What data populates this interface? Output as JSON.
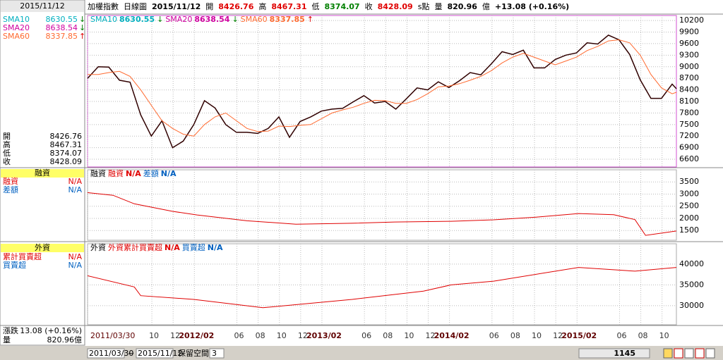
{
  "header": {
    "name": "加權指數",
    "period": "日線圖",
    "date": "2015/11/12",
    "items": [
      {
        "label": "開",
        "value": 8426.76,
        "color": "#e00000"
      },
      {
        "label": "高",
        "value": 8467.31,
        "color": "#e00000"
      },
      {
        "label": "低",
        "value": 8374.07,
        "color": "#008000"
      },
      {
        "label": "收",
        "value": 8428.09,
        "color": "#e00000"
      }
    ],
    "unit": "s點",
    "volume_label": "量",
    "volume": 820.96,
    "volume_unit": "億",
    "change": "+13.08 (+0.16%)"
  },
  "sidebar": {
    "date": "2015/11/12",
    "margin_title": "融資",
    "foreign_title": "外資",
    "foreign_rows": [
      {
        "name": "累計買賣超",
        "value": "N/A",
        "color": "#e00000"
      },
      {
        "name": "買賣超",
        "value": "N/A",
        "color": "#0060c0"
      }
    ],
    "change_label": "漲跌",
    "change": "13.08 (+0.16%)",
    "volume_label": "量",
    "volume": "820.96億"
  },
  "bottom": {
    "start": "2011/03/30",
    "separator": "~",
    "end": "2015/11/12",
    "reserve_label": "保留空間",
    "reserve": 3,
    "count": 1145
  },
  "chart_data": [
    {
      "type": "line",
      "xlim": [
        0,
        55.4
      ],
      "ylim": [
        6400,
        10330
      ],
      "yticks": [
        6600,
        6900,
        7200,
        7500,
        7800,
        8100,
        8400,
        8700,
        9000,
        9300,
        9600,
        9900,
        10200
      ],
      "legend": [
        {
          "name": "SMA10",
          "value": 8630.55,
          "arrow": "↓",
          "color": "#00b0c0",
          "arrow_color": "#008000"
        },
        {
          "name": "SMA20",
          "value": 8638.54,
          "arrow": "↓",
          "color": "#d000a0",
          "arrow_color": "#008000"
        },
        {
          "name": "SMA60",
          "value": 8337.85,
          "arrow": "↑",
          "color": "#ff6a30",
          "arrow_color": "#e00000"
        }
      ],
      "x": [
        0,
        1,
        2,
        3,
        4,
        5,
        6,
        7,
        8,
        9,
        10,
        11,
        12,
        13,
        14,
        15,
        16,
        17,
        18,
        19,
        20,
        21,
        22,
        23,
        24,
        25,
        26,
        27,
        28,
        29,
        30,
        31,
        32,
        33,
        34,
        35,
        36,
        37,
        38,
        39,
        40,
        41,
        42,
        43,
        44,
        45,
        46,
        47,
        48,
        49,
        50,
        51,
        52,
        53,
        54,
        55,
        55.4
      ],
      "series": [
        {
          "name": "加權指數",
          "color": "#300000",
          "values": [
            8700,
            9000,
            8990,
            8650,
            8600,
            7750,
            7200,
            7600,
            6900,
            7070,
            7500,
            8120,
            7930,
            7500,
            7300,
            7300,
            7270,
            7400,
            7700,
            7170,
            7580,
            7700,
            7850,
            7900,
            7920,
            8090,
            8250,
            8060,
            8100,
            7900,
            8170,
            8450,
            8400,
            8610,
            8460,
            8640,
            8850,
            8790,
            9080,
            9390,
            9320,
            9430,
            8970,
            8970,
            9190,
            9300,
            9360,
            9620,
            9590,
            9820,
            9700,
            9320,
            8660,
            8180,
            8180,
            8550,
            8428.09
          ]
        },
        {
          "name": "SMA60",
          "color": "#ff6a30",
          "values": [
            8800,
            8800,
            8850,
            8880,
            8750,
            8400,
            8000,
            7600,
            7400,
            7250,
            7200,
            7500,
            7700,
            7800,
            7600,
            7400,
            7320,
            7330,
            7460,
            7450,
            7480,
            7500,
            7650,
            7800,
            7880,
            7950,
            8050,
            8130,
            8120,
            8050,
            8050,
            8150,
            8300,
            8480,
            8500,
            8560,
            8650,
            8750,
            8900,
            9100,
            9250,
            9350,
            9250,
            9150,
            9050,
            9150,
            9250,
            9420,
            9530,
            9670,
            9700,
            9620,
            9300,
            8800,
            8450,
            8300,
            8337.85
          ]
        }
      ]
    },
    {
      "type": "line",
      "label": "融資",
      "xlim": [
        0,
        55.4
      ],
      "ylim": [
        1100,
        4000
      ],
      "yticks": [
        1500,
        2000,
        2500,
        3000,
        3500
      ],
      "legend": [
        {
          "name": "融資",
          "value": "N/A",
          "color": "#e00000"
        },
        {
          "name": "差額",
          "value": "N/A",
          "color": "#0060c0"
        }
      ],
      "x": [
        0,
        2.4,
        4.4,
        8,
        10.3,
        15,
        19.6,
        24.9,
        28.9,
        34.2,
        38.2,
        42.2,
        46.2,
        49.5,
        51.5,
        52.5,
        55.4
      ],
      "series": [
        {
          "name": "融資",
          "color": "#e00000",
          "values": [
            3060,
            2950,
            2600,
            2290,
            2140,
            1900,
            1760,
            1800,
            1850,
            1880,
            1940,
            2050,
            2200,
            2150,
            1950,
            1300,
            1480
          ]
        }
      ]
    },
    {
      "type": "line",
      "label": "外資",
      "xlim": [
        0,
        55.4
      ],
      "ylim": [
        25400,
        44900
      ],
      "yticks": [
        30000,
        35000,
        40000
      ],
      "legend": [
        {
          "name": "外資累計買賣超",
          "value": "N/A",
          "color": "#e00000"
        },
        {
          "name": "買賣超",
          "value": "N/A",
          "color": "#0060c0"
        }
      ],
      "x": [
        0,
        4.4,
        5,
        10,
        16.5,
        24.9,
        31.6,
        34.2,
        38.2,
        46.2,
        51.5,
        55.4
      ],
      "series": [
        {
          "name": "外資累計買賣超",
          "color": "#e00000",
          "values": [
            37200,
            34500,
            32400,
            31500,
            29500,
            31500,
            33500,
            35000,
            35900,
            39200,
            38300,
            39200
          ]
        }
      ],
      "xticks": [
        {
          "value": 0,
          "label": "2011/03/30"
        },
        {
          "value": 6.05,
          "label": "10"
        },
        {
          "value": 8.05,
          "label": "12"
        },
        {
          "value": 10.05,
          "label": "2012/02"
        },
        {
          "value": 14.05,
          "label": "06"
        },
        {
          "value": 16.05,
          "label": "08"
        },
        {
          "value": 18.05,
          "label": "10"
        },
        {
          "value": 20.05,
          "label": "12"
        },
        {
          "value": 22.05,
          "label": "2013/02"
        },
        {
          "value": 26.05,
          "label": "06"
        },
        {
          "value": 28.05,
          "label": "08"
        },
        {
          "value": 30.05,
          "label": "10"
        },
        {
          "value": 32.05,
          "label": "12"
        },
        {
          "value": 34.05,
          "label": "2014/02"
        },
        {
          "value": 38.05,
          "label": "06"
        },
        {
          "value": 40.05,
          "label": "08"
        },
        {
          "value": 42.05,
          "label": "10"
        },
        {
          "value": 44.05,
          "label": "12"
        },
        {
          "value": 46.05,
          "label": "2015/02"
        },
        {
          "value": 50.05,
          "label": "06"
        },
        {
          "value": 52.05,
          "label": "08"
        },
        {
          "value": 54.05,
          "label": "10"
        }
      ]
    }
  ]
}
